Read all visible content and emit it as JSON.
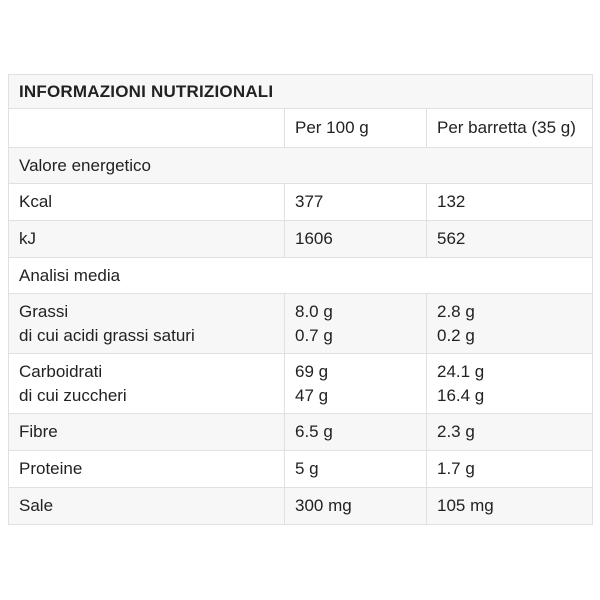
{
  "colors": {
    "text": "#222222",
    "border": "#e0e0e0",
    "stripe": "#f7f7f7",
    "row_bg": "#ffffff",
    "page_bg": "#ffffff"
  },
  "table": {
    "title": "INFORMAZIONI NUTRIZIONALI",
    "columns": [
      "",
      "Per 100 g",
      "Per barretta (35 g)"
    ],
    "rows": [
      {
        "type": "section",
        "label": "Valore energetico"
      },
      {
        "type": "data",
        "lines": [
          {
            "label": "Kcal",
            "per_100g": "377",
            "per_bar": "132"
          }
        ]
      },
      {
        "type": "data",
        "lines": [
          {
            "label": "kJ",
            "per_100g": "1606",
            "per_bar": "562"
          }
        ]
      },
      {
        "type": "section",
        "label": "Analisi media"
      },
      {
        "type": "data",
        "lines": [
          {
            "label": "Grassi",
            "per_100g": "8.0 g",
            "per_bar": "2.8 g"
          },
          {
            "label": "di cui acidi grassi saturi",
            "per_100g": "0.7 g",
            "per_bar": "0.2 g"
          }
        ]
      },
      {
        "type": "data",
        "lines": [
          {
            "label": "Carboidrati",
            "per_100g": "69 g",
            "per_bar": "24.1 g"
          },
          {
            "label": "di cui zuccheri",
            "per_100g": "47 g",
            "per_bar": "16.4 g"
          }
        ]
      },
      {
        "type": "data",
        "lines": [
          {
            "label": "Fibre",
            "per_100g": "6.5 g",
            "per_bar": "2.3 g"
          }
        ]
      },
      {
        "type": "data",
        "lines": [
          {
            "label": "Proteine",
            "per_100g": "5 g",
            "per_bar": "1.7 g"
          }
        ]
      },
      {
        "type": "data",
        "lines": [
          {
            "label": "Sale",
            "per_100g": "300 mg",
            "per_bar": "105 mg"
          }
        ]
      }
    ]
  }
}
